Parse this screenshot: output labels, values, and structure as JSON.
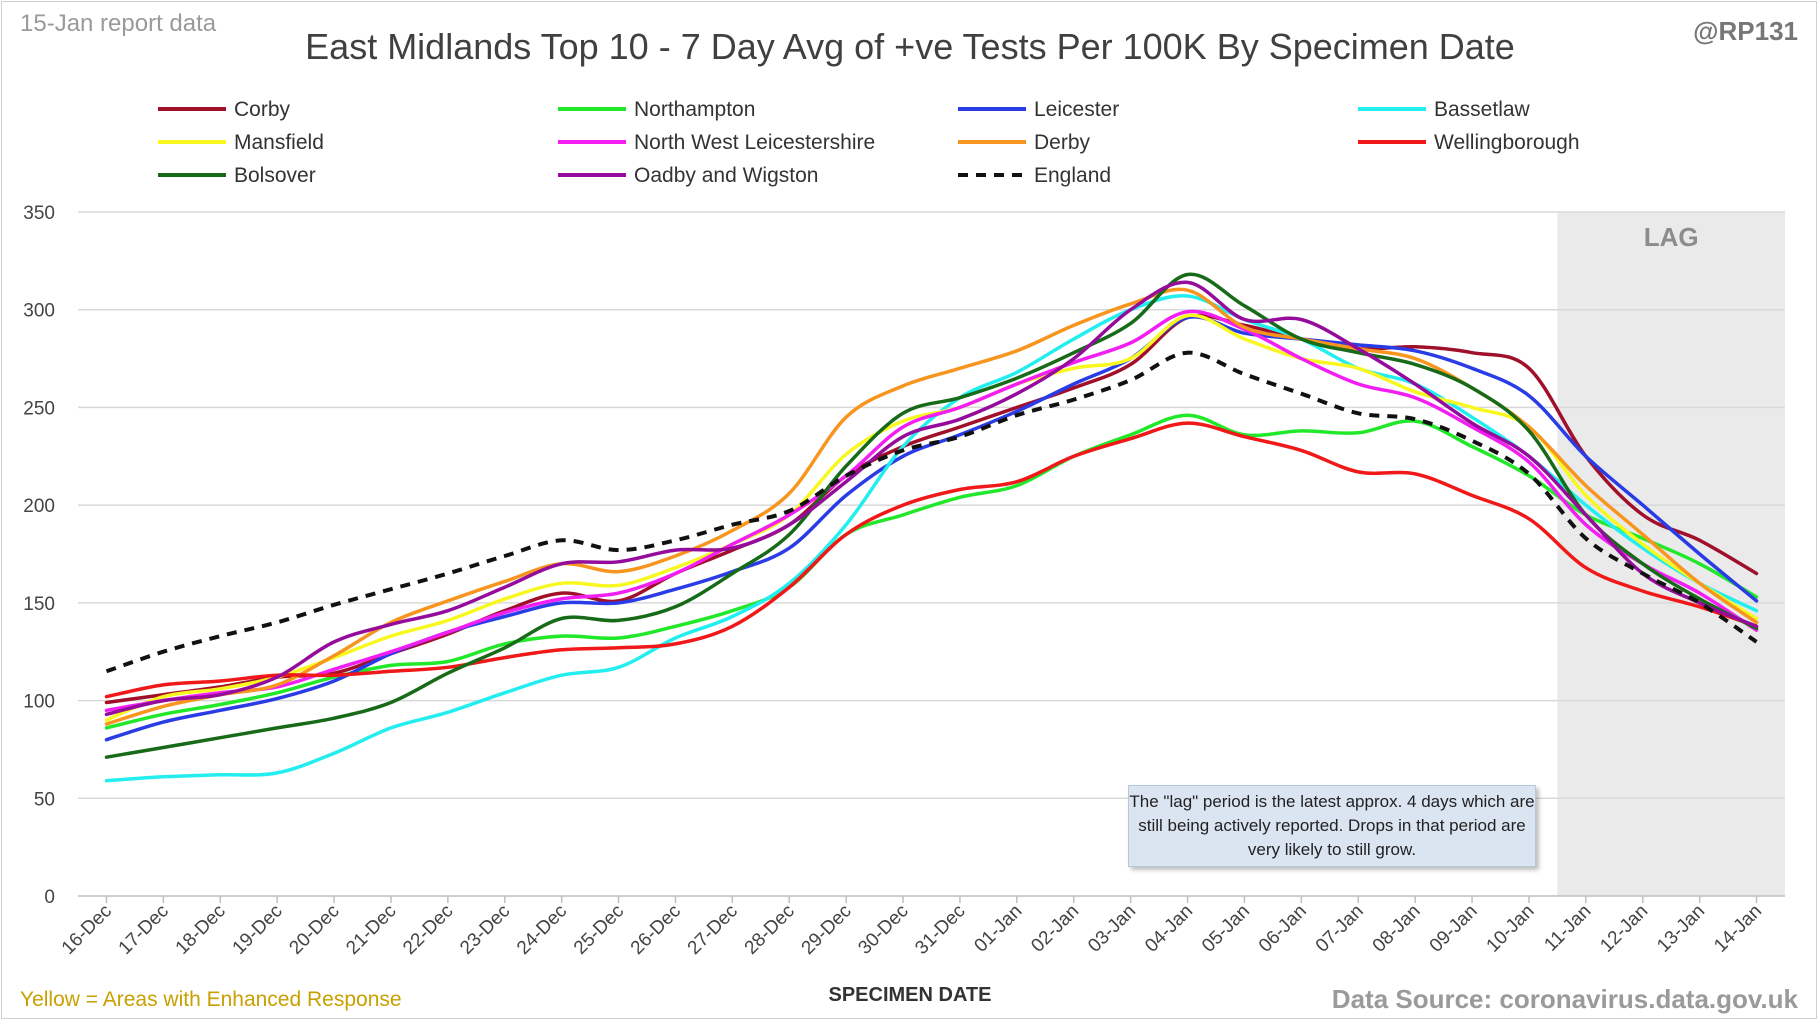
{
  "header": {
    "report_date": "15-Jan report data",
    "handle": "@RP131",
    "title": "East Midlands Top 10 - 7 Day Avg of +ve Tests Per 100K By Specimen Date"
  },
  "footer": {
    "enhanced_note": "Yellow = Areas with Enhanced Response",
    "source": "Data Source: coronavirus.data.gov.uk"
  },
  "note_text": "The \"lag\" period is the latest approx. 4 days which are still being actively reported.  Drops in that period are very likely to still grow.",
  "chart_data": {
    "type": "line",
    "title": "East Midlands Top 10 - 7 Day Avg of +ve Tests Per 100K By Specimen Date",
    "xlabel": "SPECIMEN DATE",
    "ylabel": "",
    "ylim": [
      0,
      350
    ],
    "yticks": [
      0,
      50,
      100,
      150,
      200,
      250,
      300,
      350
    ],
    "grid": true,
    "legend_position": "top",
    "lag_region": {
      "label": "LAG",
      "start": "11-Jan",
      "end": "14-Jan"
    },
    "x": [
      "16-Dec",
      "17-Dec",
      "18-Dec",
      "19-Dec",
      "20-Dec",
      "21-Dec",
      "22-Dec",
      "23-Dec",
      "24-Dec",
      "25-Dec",
      "26-Dec",
      "27-Dec",
      "28-Dec",
      "29-Dec",
      "30-Dec",
      "31-Dec",
      "01-Jan",
      "02-Jan",
      "03-Jan",
      "04-Jan",
      "05-Jan",
      "06-Jan",
      "07-Jan",
      "08-Jan",
      "09-Jan",
      "10-Jan",
      "11-Jan",
      "12-Jan",
      "13-Jan",
      "14-Jan"
    ],
    "series": [
      {
        "name": "Corby",
        "color": "#a0102a",
        "values": [
          99,
          103,
          107,
          112,
          114,
          124,
          134,
          146,
          155,
          151,
          165,
          177,
          190,
          215,
          230,
          240,
          250,
          260,
          272,
          296,
          292,
          285,
          280,
          281,
          278,
          270,
          225,
          195,
          182,
          165
        ]
      },
      {
        "name": "Northampton",
        "color": "#22e82a",
        "values": [
          86,
          93,
          98,
          104,
          112,
          118,
          120,
          129,
          133,
          132,
          138,
          146,
          158,
          185,
          195,
          204,
          210,
          225,
          236,
          246,
          236,
          238,
          237,
          243,
          230,
          215,
          195,
          183,
          170,
          153
        ]
      },
      {
        "name": "Leicester",
        "color": "#2a3ce6",
        "values": [
          80,
          89,
          95,
          101,
          110,
          124,
          135,
          143,
          150,
          150,
          157,
          166,
          178,
          205,
          225,
          236,
          248,
          262,
          275,
          296,
          288,
          285,
          282,
          279,
          270,
          256,
          225,
          200,
          175,
          151
        ]
      },
      {
        "name": "Bassetlaw",
        "color": "#22eef0",
        "values": [
          59,
          61,
          62,
          63,
          73,
          86,
          94,
          104,
          113,
          117,
          132,
          143,
          160,
          190,
          230,
          255,
          268,
          285,
          300,
          307,
          295,
          285,
          270,
          262,
          245,
          225,
          200,
          178,
          160,
          146
        ]
      },
      {
        "name": "Mansfield",
        "color": "#f8f820",
        "values": [
          90,
          102,
          106,
          112,
          122,
          133,
          141,
          152,
          160,
          159,
          168,
          180,
          195,
          226,
          243,
          250,
          262,
          270,
          275,
          297,
          285,
          275,
          270,
          258,
          250,
          240,
          205,
          180,
          160,
          142
        ]
      },
      {
        "name": "North West Leicestershire",
        "color": "#f21ef2",
        "values": [
          95,
          100,
          104,
          107,
          116,
          125,
          135,
          145,
          152,
          155,
          165,
          180,
          195,
          215,
          240,
          250,
          262,
          273,
          283,
          299,
          290,
          275,
          262,
          255,
          240,
          222,
          190,
          170,
          155,
          136
        ]
      },
      {
        "name": "Derby",
        "color": "#f7951e",
        "values": [
          88,
          97,
          103,
          108,
          123,
          140,
          151,
          161,
          170,
          166,
          174,
          187,
          206,
          245,
          261,
          270,
          279,
          292,
          303,
          310,
          291,
          285,
          280,
          275,
          260,
          240,
          210,
          185,
          160,
          140
        ]
      },
      {
        "name": "Wellingborough",
        "color": "#f01818",
        "values": [
          102,
          108,
          110,
          113,
          113,
          115,
          117,
          122,
          126,
          127,
          129,
          138,
          158,
          185,
          200,
          208,
          212,
          225,
          234,
          242,
          235,
          228,
          217,
          216,
          205,
          193,
          168,
          156,
          148,
          138
        ]
      },
      {
        "name": "Bolsover",
        "color": "#176b18",
        "values": [
          71,
          76,
          81,
          86,
          91,
          99,
          114,
          127,
          142,
          141,
          148,
          165,
          185,
          220,
          247,
          255,
          265,
          278,
          293,
          318,
          302,
          285,
          278,
          272,
          260,
          238,
          195,
          170,
          152,
          137
        ]
      },
      {
        "name": "Oadby and Wigston",
        "color": "#950c9c",
        "values": [
          93,
          100,
          103,
          112,
          130,
          139,
          146,
          158,
          170,
          171,
          177,
          178,
          190,
          212,
          235,
          244,
          257,
          275,
          300,
          314,
          295,
          295,
          280,
          262,
          242,
          225,
          195,
          165,
          150,
          138
        ]
      },
      {
        "name": "England",
        "color": "#111111",
        "dashed": true,
        "values": [
          115,
          125,
          133,
          140,
          149,
          157,
          165,
          174,
          182,
          177,
          182,
          190,
          197,
          215,
          228,
          235,
          246,
          254,
          264,
          278,
          267,
          257,
          247,
          244,
          233,
          216,
          183,
          165,
          150,
          130
        ]
      }
    ]
  }
}
